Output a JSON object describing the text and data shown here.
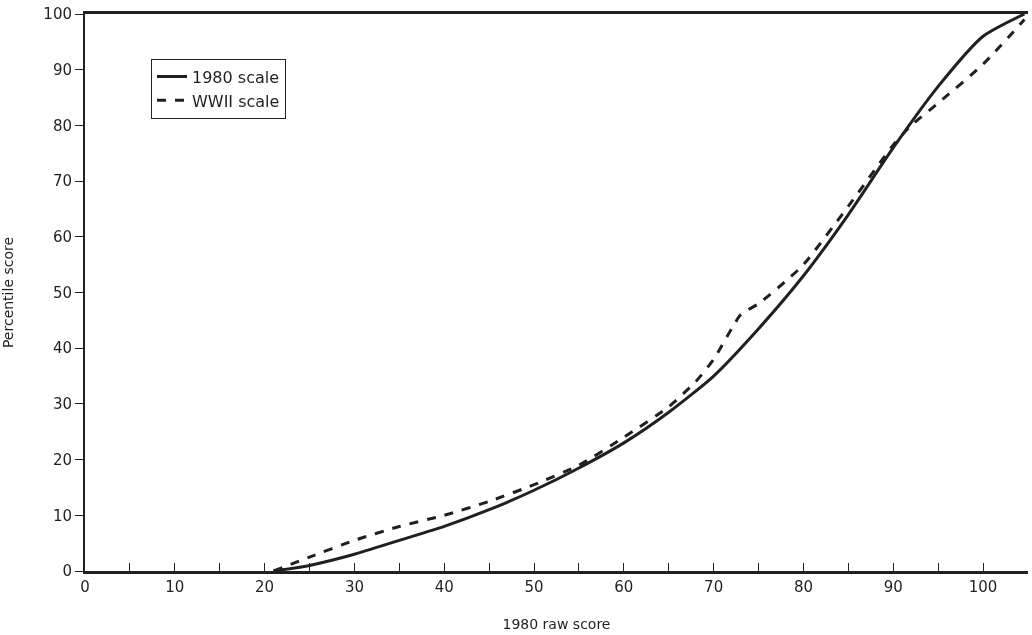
{
  "chart_data": {
    "type": "line",
    "xlabel": "1980 raw score",
    "ylabel": "Percentile score",
    "xlim": [
      0,
      105
    ],
    "ylim": [
      0,
      100
    ],
    "xticks": [
      0,
      {
        "value": 5,
        "label": null
      },
      10,
      {
        "value": 15,
        "label": null
      },
      20,
      {
        "value": 25,
        "label": null
      },
      30,
      {
        "value": 35,
        "label": null
      },
      40,
      {
        "value": 45,
        "label": null
      },
      50,
      {
        "value": 55,
        "label": null
      },
      60,
      {
        "value": 65,
        "label": null
      },
      70,
      {
        "value": 75,
        "label": null
      },
      80,
      {
        "value": 85,
        "label": null
      },
      90,
      {
        "value": 95,
        "label": null
      },
      100
    ],
    "yticks": [
      0,
      10,
      20,
      30,
      40,
      50,
      60,
      70,
      80,
      90,
      100
    ],
    "legend": "top left",
    "marker": "none",
    "series": [
      {
        "name": "1980 scale",
        "color": "#231f20",
        "line_style": "solid",
        "x": [
          21,
          25,
          30,
          35,
          40,
          45,
          50,
          55,
          60,
          65,
          70,
          75,
          80,
          85,
          90,
          95,
          100,
          104.6
        ],
        "values": [
          0,
          1,
          3,
          5.5,
          8,
          11,
          14.5,
          18.5,
          23,
          28.5,
          35,
          43.5,
          53,
          64,
          76,
          87,
          96,
          100
        ]
      },
      {
        "name": "WWII scale",
        "color": "#231f20",
        "line_style": "dashed",
        "x": [
          21,
          25,
          30,
          35,
          40,
          45,
          50,
          55,
          60,
          65,
          68,
          70,
          72,
          73,
          75,
          78,
          80,
          85,
          90,
          92,
          95,
          100,
          104.6
        ],
        "values": [
          0,
          2.5,
          5.5,
          8,
          10,
          12.5,
          15.5,
          19,
          24,
          29.5,
          34,
          38,
          43.5,
          46,
          48,
          52,
          55,
          65.5,
          76.5,
          80,
          84,
          91,
          99
        ]
      }
    ]
  }
}
